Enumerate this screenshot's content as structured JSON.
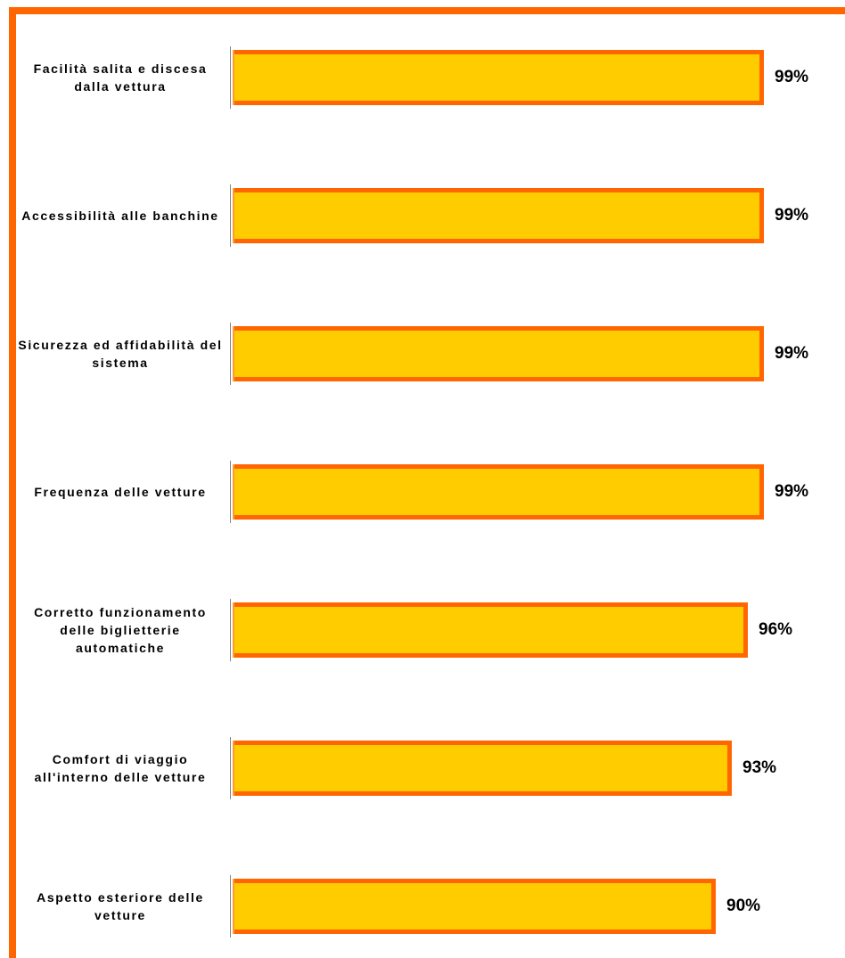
{
  "colors": {
    "frame": "#FF6600",
    "bar_fill": "#FFCC00",
    "bar_border": "#FF6600",
    "axis": "#888888",
    "text": "#000000"
  },
  "chart_data": {
    "type": "bar",
    "orientation": "horizontal",
    "categories": [
      "Facilità salita e discesa dalla vettura",
      "Accessibilità alle banchine",
      "Sicurezza ed affidabilità del sistema",
      "Frequenza delle vetture",
      "Corretto funzionamento delle biglietterie automatiche",
      "Comfort di viaggio all'interno delle vetture",
      "Aspetto esteriore delle vetture"
    ],
    "values": [
      99,
      99,
      99,
      99,
      96,
      93,
      90
    ],
    "value_labels": [
      "99%",
      "99%",
      "99%",
      "99%",
      "96%",
      "93%",
      "90%"
    ],
    "unit": "%",
    "title": "",
    "xlabel": "",
    "ylabel": "",
    "xlim": [
      0,
      100
    ],
    "grid": false,
    "legend": "none"
  }
}
